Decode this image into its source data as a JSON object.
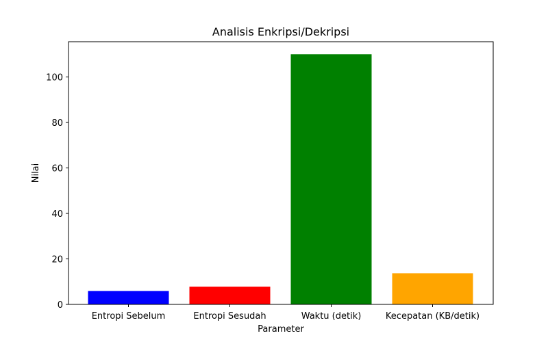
{
  "chart_data": {
    "type": "bar",
    "title": "Analisis Enkripsi/Dekripsi",
    "xlabel": "Parameter",
    "ylabel": "Nilai",
    "categories": [
      "Entropi Sebelum",
      "Entropi Sesudah",
      "Waktu (detik)",
      "Kecepatan (KB/detik)"
    ],
    "values": [
      5.9,
      7.8,
      110.0,
      13.7
    ],
    "colors": [
      "#0000ff",
      "#ff0000",
      "#008000",
      "#ffa500"
    ],
    "ylim": [
      0,
      115.5
    ],
    "yticks": [
      0,
      20,
      40,
      60,
      80,
      100
    ],
    "grid": false,
    "legend": "none"
  }
}
